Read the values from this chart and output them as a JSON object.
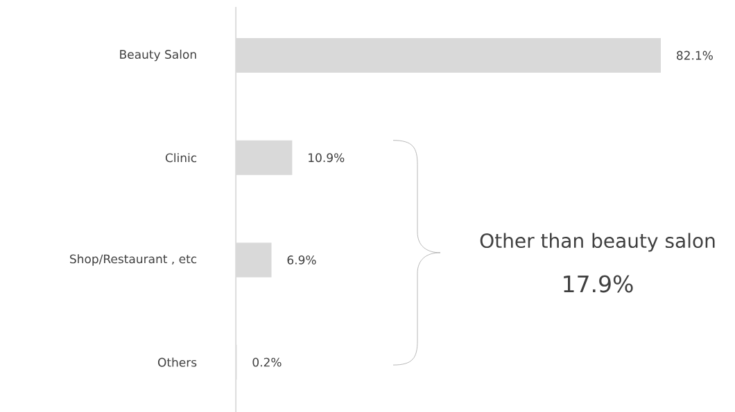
{
  "chart_data": {
    "type": "bar",
    "orientation": "horizontal",
    "categories": [
      "Beauty Salon",
      "Clinic",
      "Shop/Restaurant , etc",
      "Others"
    ],
    "values": [
      82.1,
      10.9,
      6.9,
      0.2
    ],
    "value_labels": [
      "82.1%",
      "10.9%",
      "6.9%",
      "0.2%"
    ],
    "color": "#d9d9d9",
    "annotations": [
      "Other than beauty salon",
      "17.9%"
    ]
  }
}
